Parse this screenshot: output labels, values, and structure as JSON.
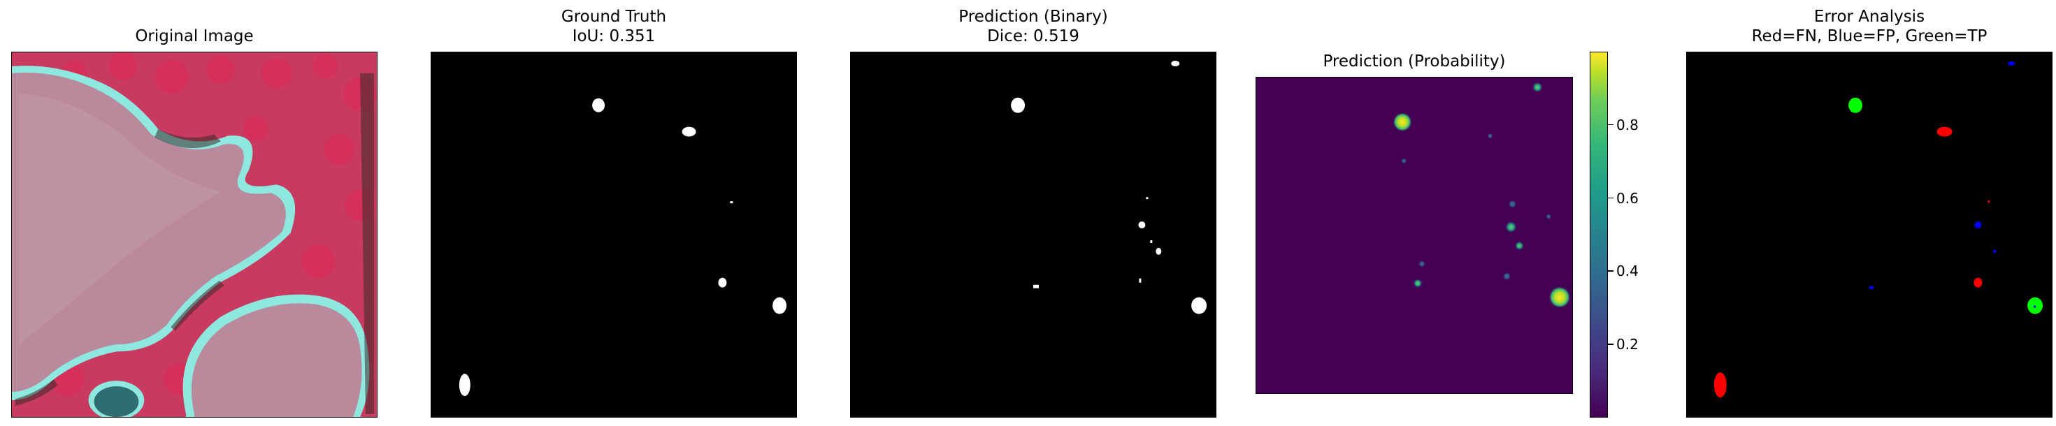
{
  "panels": [
    {
      "id": "original",
      "title_line1": "Original Image",
      "title_line2": ""
    },
    {
      "id": "gt",
      "title_line1": "Ground Truth",
      "title_line2": "IoU: 0.351"
    },
    {
      "id": "binary",
      "title_line1": "Prediction (Binary)",
      "title_line2": "Dice: 0.519"
    },
    {
      "id": "prob",
      "title_line1": "Prediction (Probability)",
      "title_line2": ""
    },
    {
      "id": "error",
      "title_line1": "Error Analysis",
      "title_line2": "Red=FN, Blue=FP, Green=TP"
    }
  ],
  "colorbar": {
    "colormap": "viridis",
    "range": [
      0.0,
      1.0
    ],
    "ticks": [
      "0.8",
      "0.6",
      "0.4",
      "0.2"
    ]
  },
  "colors": {
    "fn": "#ff0000",
    "fp": "#0000ff",
    "tp": "#00ff00",
    "mask": "#ffffff",
    "background": "#000000",
    "prob_low": "#440154",
    "prob_high": "#fde725"
  }
}
